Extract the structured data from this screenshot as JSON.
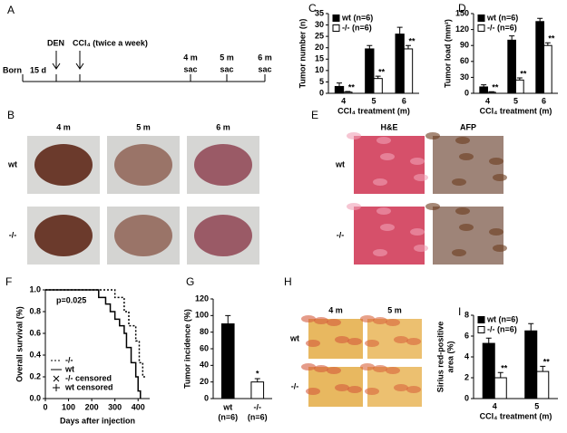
{
  "timeline": {
    "label": "A",
    "start": "Born",
    "gap": "15 d",
    "den": "DEN",
    "ccl4": "CCl₄ (twice a week)",
    "sacs": [
      {
        "time": "4 m",
        "label": "sac"
      },
      {
        "time": "5 m",
        "label": "sac"
      },
      {
        "time": "6 m",
        "label": "sac"
      }
    ]
  },
  "photos_b": {
    "label": "B",
    "cols": [
      "4 m",
      "5 m",
      "6 m"
    ],
    "rows": [
      "wt",
      "-/-"
    ]
  },
  "photos_e": {
    "label": "E",
    "cols": [
      "H&E",
      "AFP"
    ],
    "rows": [
      "wt",
      "-/-"
    ]
  },
  "photos_h": {
    "label": "H",
    "cols": [
      "4 m",
      "5 m"
    ],
    "rows": [
      "wt",
      "-/-"
    ]
  },
  "chart_data": [
    {
      "type": "bar",
      "label": "C",
      "y_label": [
        "Tumor number (n)"
      ],
      "x_label": "CCl₄ treatment (m)",
      "categories": [
        "4",
        "5",
        "6"
      ],
      "ylim": [
        0,
        35
      ],
      "yticks": [
        0,
        5,
        10,
        15,
        20,
        25,
        30,
        35
      ],
      "series": [
        {
          "name": "wt (n=6)",
          "color": "#000000",
          "values": [
            3,
            19.5,
            26
          ],
          "errors": [
            1.5,
            1.5,
            3
          ]
        },
        {
          "name": "-/- (n=6)",
          "color": "#ffffff",
          "values": [
            0.5,
            6.5,
            19.5
          ],
          "errors": [
            0.3,
            1,
            1.5
          ],
          "significance": [
            "**",
            "**",
            "**"
          ]
        }
      ]
    },
    {
      "type": "bar",
      "label": "D",
      "y_label": [
        "Tumor load (mm²)"
      ],
      "x_label": "CCl₄ treatment (m)",
      "categories": [
        "4",
        "5",
        "6"
      ],
      "ylim": [
        0,
        150
      ],
      "yticks": [
        0,
        30,
        60,
        90,
        120,
        150
      ],
      "series": [
        {
          "name": "wt (n=6)",
          "color": "#000000",
          "values": [
            12,
            100,
            135
          ],
          "errors": [
            4,
            8,
            6
          ]
        },
        {
          "name": "-/- (n=6)",
          "color": "#ffffff",
          "values": [
            2,
            25,
            90
          ],
          "errors": [
            1,
            4,
            5
          ],
          "significance": [
            "**",
            "**",
            "**"
          ]
        }
      ]
    },
    {
      "type": "line",
      "label": "F",
      "y_label": [
        "Overall survival (%)"
      ],
      "x_label": "Days after injection",
      "annotation": "p=0.025",
      "xlim": [
        0,
        450
      ],
      "xticks": [
        0,
        100,
        200,
        300,
        400
      ],
      "ylim": [
        0,
        1
      ],
      "yticks": [
        {
          "value": 0,
          "label": "0.0"
        },
        {
          "value": 0.2,
          "label": "0.2"
        },
        {
          "value": 0.4,
          "label": "0.4"
        },
        {
          "value": 0.6,
          "label": "0.6"
        },
        {
          "value": 0.8,
          "label": "0.8"
        },
        {
          "value": 1,
          "label": "1.0"
        }
      ],
      "series": [
        {
          "name": "-/-",
          "color": "#000000",
          "dash": true,
          "x": [
            0,
            300,
            300,
            340,
            340,
            360,
            360,
            390,
            390,
            405,
            405,
            420,
            420,
            430
          ],
          "values": [
            1,
            1,
            0.93,
            0.93,
            0.8,
            0.8,
            0.67,
            0.67,
            0.53,
            0.53,
            0.33,
            0.33,
            0.2,
            0.2
          ]
        },
        {
          "name": "wt",
          "color": "#000000",
          "dash": false,
          "x": [
            0,
            230,
            230,
            260,
            260,
            280,
            280,
            300,
            300,
            320,
            320,
            340,
            340,
            350,
            350,
            370,
            370,
            390,
            390,
            400,
            400,
            410,
            410
          ],
          "values": [
            1,
            1,
            0.93,
            0.93,
            0.87,
            0.87,
            0.8,
            0.8,
            0.73,
            0.73,
            0.67,
            0.67,
            0.6,
            0.6,
            0.47,
            0.47,
            0.33,
            0.33,
            0.2,
            0.2,
            0.07,
            0.07,
            0
          ]
        }
      ],
      "censored_legend": [
        "-/- censored",
        "wt censored"
      ]
    },
    {
      "type": "bar",
      "label": "G",
      "y_label": [
        "Tumor incidence (%)"
      ],
      "categories": [
        "wt",
        "-/-"
      ],
      "category_notes": [
        "(n=6)",
        "(n=6)"
      ],
      "colors": [
        "#000000",
        "#ffffff"
      ],
      "values": [
        90,
        20
      ],
      "errors": [
        10,
        4
      ],
      "significance": [
        null,
        "*"
      ],
      "ylim": [
        0,
        120
      ],
      "yticks": [
        0,
        20,
        40,
        60,
        80,
        100,
        120
      ]
    },
    {
      "type": "bar",
      "label": "I",
      "y_label": [
        "Sirius red-positive",
        "area (%)"
      ],
      "x_label": "CCl₄ treatment (m)",
      "categories": [
        "4",
        "5"
      ],
      "ylim": [
        0,
        8
      ],
      "yticks": [
        0,
        2,
        4,
        6,
        8
      ],
      "series": [
        {
          "name": "wt (n=6)",
          "color": "#000000",
          "values": [
            5.3,
            6.5
          ],
          "errors": [
            0.5,
            0.7
          ]
        },
        {
          "name": "-/- (n=6)",
          "color": "#ffffff",
          "values": [
            2,
            2.6
          ],
          "errors": [
            0.5,
            0.5
          ],
          "significance": [
            "**",
            "**"
          ]
        }
      ]
    }
  ]
}
